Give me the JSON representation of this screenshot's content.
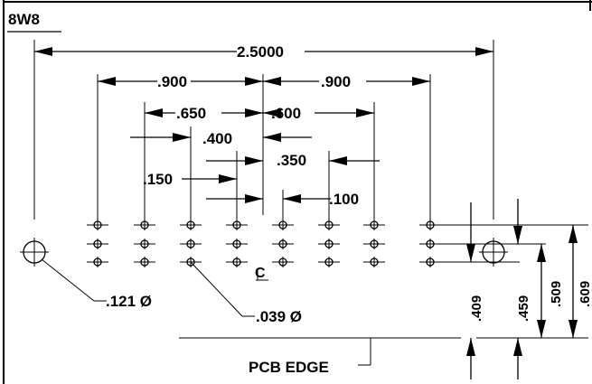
{
  "title": "8W8",
  "dimensions": {
    "overall_width": "2.5000",
    "outer_left_pitch": ".900",
    "outer_right_pitch": ".900",
    "left_650": ".650",
    "right_600": ".600",
    "left_400": ".400",
    "right_350": ".350",
    "left_150": ".150",
    "right_100": ".100",
    "mount_hole_dia": ".121 Ø",
    "pin_hole_dia": ".039 Ø",
    "row_409": ".409",
    "row_459": ".459",
    "row_509": ".509",
    "row_609": ".609"
  },
  "labels": {
    "pcb_edge": "PCB EDGE"
  }
}
